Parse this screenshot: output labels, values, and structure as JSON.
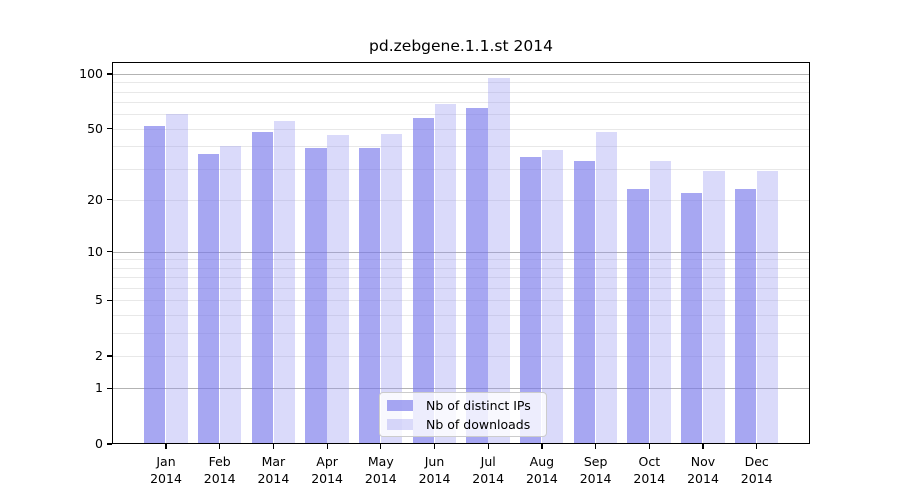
{
  "chart_data": {
    "type": "bar",
    "title": "pd.zebgene.1.1.st 2014",
    "categories": [
      "Jan 2014",
      "Feb 2014",
      "Mar 2014",
      "Apr 2014",
      "May 2014",
      "Jun 2014",
      "Jul 2014",
      "Aug 2014",
      "Sep 2014",
      "Oct 2014",
      "Nov 2014",
      "Dec 2014"
    ],
    "series": [
      {
        "name": "Nb of distinct IPs",
        "color": "rgba(120,120,235,0.65)",
        "values": [
          52,
          36,
          48,
          39,
          39,
          57,
          65,
          35,
          33,
          23,
          22,
          23
        ]
      },
      {
        "name": "Nb of downloads",
        "color": "rgba(150,150,240,0.35)",
        "values": [
          60,
          40,
          55,
          46,
          47,
          68,
          95,
          38,
          48,
          33,
          29,
          29
        ]
      }
    ],
    "xlabel": "",
    "ylabel": "",
    "yscale": "log1p",
    "ylim": [
      0,
      116
    ],
    "yticks": [
      0,
      1,
      2,
      5,
      10,
      20,
      50,
      100
    ],
    "major_gridlines": [
      1,
      10,
      100
    ],
    "minor_gridlines": [
      2,
      3,
      4,
      5,
      6,
      7,
      8,
      9,
      20,
      30,
      40,
      50,
      60,
      70,
      80,
      90
    ],
    "grid": "on",
    "legend_position": "bottom-center",
    "colors": {
      "background": "#ffffff",
      "axis": "#000000",
      "text": "#000000",
      "major_grid": "#b3b3b3",
      "minor_grid": "#e8e8e8"
    }
  }
}
